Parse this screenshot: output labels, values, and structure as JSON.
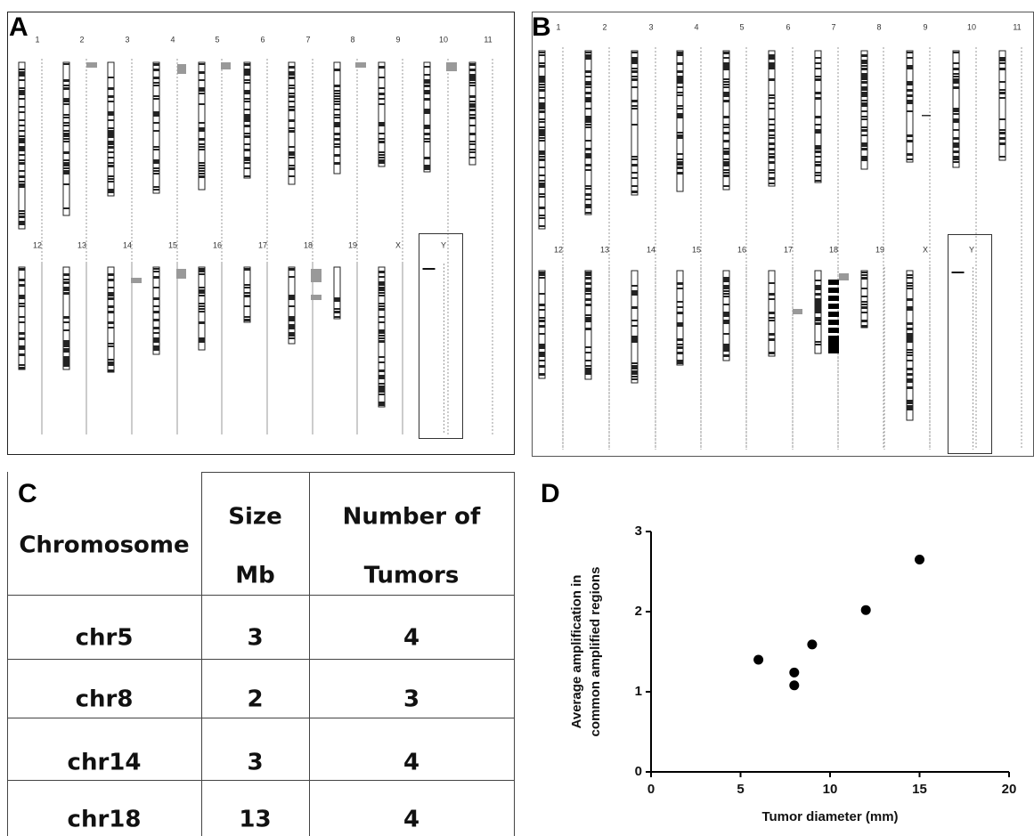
{
  "panel_a": {
    "label": "A",
    "row1": [
      "1",
      "2",
      "3",
      "4",
      "5",
      "6",
      "7",
      "8",
      "9",
      "10",
      "11"
    ],
    "row2": [
      "12",
      "13",
      "14",
      "15",
      "16",
      "17",
      "18",
      "19",
      "X",
      "Y"
    ]
  },
  "panel_b": {
    "label": "B",
    "row1": [
      "1",
      "2",
      "3",
      "4",
      "5",
      "6",
      "7",
      "8",
      "9",
      "10",
      "11"
    ],
    "row2": [
      "12",
      "13",
      "14",
      "15",
      "16",
      "17",
      "18",
      "19",
      "X",
      "Y"
    ]
  },
  "table": {
    "label": "C",
    "header": [
      "Chromosome",
      [
        "Size",
        "Mb"
      ],
      [
        "Number of",
        "Tumors"
      ]
    ],
    "rows": [
      [
        "chr5",
        "3",
        "4"
      ],
      [
        "chr8",
        "2",
        "3"
      ],
      [
        "chr14",
        "3",
        "4"
      ],
      [
        "chr18",
        "13",
        "4"
      ]
    ]
  },
  "chart_data": {
    "type": "scatter",
    "label": "D",
    "xlabel": "Tumor diameter (mm)",
    "ylabel": [
      "Average amplification in",
      "common amplified regions"
    ],
    "x": [
      6,
      8,
      8,
      9,
      12,
      15
    ],
    "values": [
      1.4,
      1.24,
      1.08,
      1.59,
      2.02,
      2.65
    ],
    "color": "#000000",
    "xlim": [
      0,
      20
    ],
    "ylim": [
      0,
      3
    ],
    "xticks": [
      0,
      5,
      10,
      15,
      20
    ],
    "yticks": [
      0,
      1,
      2,
      3
    ],
    "grid": false
  }
}
